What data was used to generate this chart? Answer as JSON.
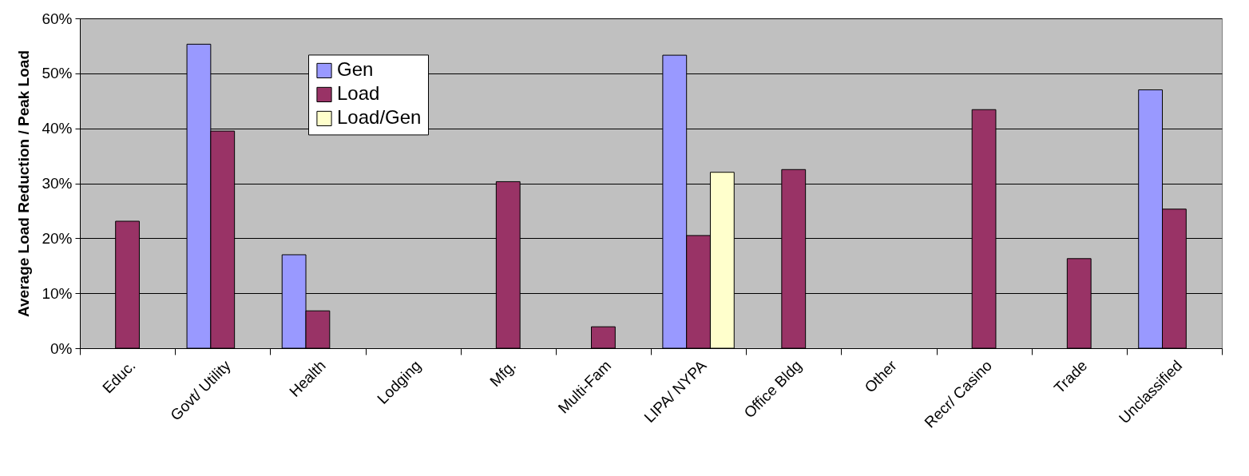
{
  "chart_data": {
    "type": "bar",
    "ylabel": "Average Load Reduction / Peak Load",
    "categories": [
      "Educ.",
      "Govt/ Utility",
      "Health",
      "Lodging",
      "Mfg.",
      "Multi-Fam",
      "LIPA/ NYPA",
      "Office Bldg",
      "Other",
      "Recr/ Casino",
      "Trade",
      "Unclassified"
    ],
    "series": [
      {
        "name": "Gen",
        "color": "#9999ff",
        "values": [
          null,
          55.3,
          17.0,
          null,
          null,
          null,
          53.3,
          null,
          null,
          null,
          null,
          47.0
        ]
      },
      {
        "name": "Load",
        "color": "#993366",
        "values": [
          23.1,
          39.5,
          6.8,
          null,
          30.3,
          3.9,
          20.5,
          32.5,
          null,
          43.4,
          16.3,
          25.3
        ]
      },
      {
        "name": "Load/Gen",
        "color": "#ffffcc",
        "values": [
          null,
          null,
          null,
          null,
          null,
          null,
          32.0,
          null,
          null,
          null,
          null,
          null
        ]
      }
    ],
    "ylim": [
      0,
      60
    ],
    "yticks": [
      {
        "value": 0,
        "label": "0%"
      },
      {
        "value": 10,
        "label": "10%"
      },
      {
        "value": 20,
        "label": "20%"
      },
      {
        "value": 30,
        "label": "30%"
      },
      {
        "value": 40,
        "label": "40%"
      },
      {
        "value": 50,
        "label": "50%"
      },
      {
        "value": 60,
        "label": "60%"
      }
    ],
    "grid": "y",
    "legend": "top left"
  }
}
